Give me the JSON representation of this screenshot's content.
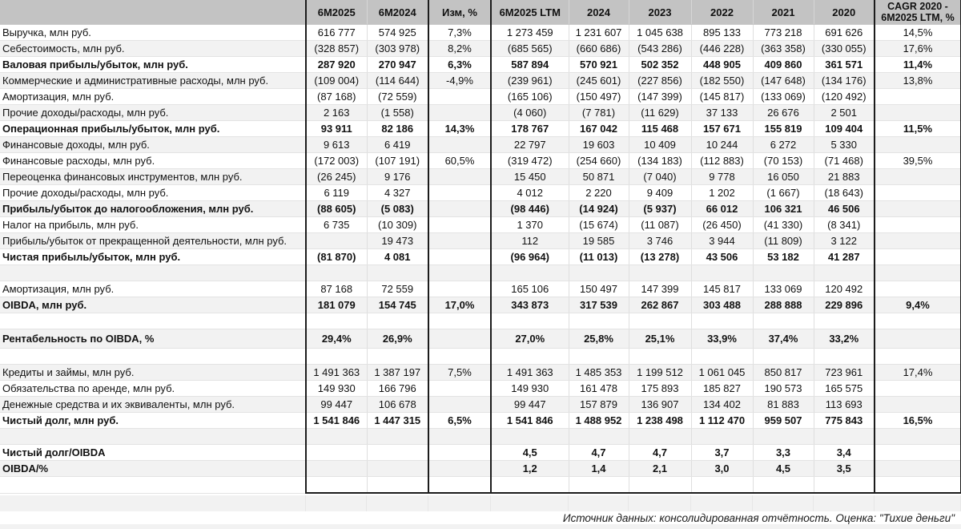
{
  "header": {
    "row_label_header": "",
    "columns": [
      "6M2025",
      "6M2024",
      "Изм, %",
      "6M2025 LTM",
      "2024",
      "2023",
      "2022",
      "2021",
      "2020",
      "CAGR 2020 - 6M2025 LTM, %"
    ]
  },
  "rows": [
    {
      "label": "Выручка, млн руб.",
      "bold": false,
      "values": [
        "616 777",
        "574 925",
        "7,3%",
        "1 273 459",
        "1 231 607",
        "1 045 638",
        "895 133",
        "773 218",
        "691 626",
        "14,5%"
      ]
    },
    {
      "label": "Себестоимость, млн руб.",
      "bold": false,
      "values": [
        "(328 857)",
        "(303 978)",
        "8,2%",
        "(685 565)",
        "(660 686)",
        "(543 286)",
        "(446 228)",
        "(363 358)",
        "(330 055)",
        "17,6%"
      ]
    },
    {
      "label": "Валовая прибыль/убыток, млн руб.",
      "bold": true,
      "values": [
        "287 920",
        "270 947",
        "6,3%",
        "587 894",
        "570 921",
        "502 352",
        "448 905",
        "409 860",
        "361 571",
        "11,4%"
      ]
    },
    {
      "label": "Коммерческие и административные расходы, млн руб.",
      "bold": false,
      "values": [
        "(109 004)",
        "(114 644)",
        "-4,9%",
        "(239 961)",
        "(245 601)",
        "(227 856)",
        "(182 550)",
        "(147 648)",
        "(134 176)",
        "13,8%"
      ]
    },
    {
      "label": "Амортизация, млн руб.",
      "bold": false,
      "values": [
        "(87 168)",
        "(72 559)",
        "",
        "(165 106)",
        "(150 497)",
        "(147 399)",
        "(145 817)",
        "(133 069)",
        "(120 492)",
        ""
      ]
    },
    {
      "label": "Прочие доходы/расходы, млн руб.",
      "bold": false,
      "values": [
        "2 163",
        "(1 558)",
        "",
        "(4 060)",
        "(7 781)",
        "(11 629)",
        "37 133",
        "26 676",
        "2 501",
        ""
      ]
    },
    {
      "label": "Операционная прибыль/убыток, млн руб.",
      "bold": true,
      "values": [
        "93 911",
        "82 186",
        "14,3%",
        "178 767",
        "167 042",
        "115 468",
        "157 671",
        "155 819",
        "109 404",
        "11,5%"
      ]
    },
    {
      "label": "Финансовые доходы, млн руб.",
      "bold": false,
      "values": [
        "9 613",
        "6 419",
        "",
        "22 797",
        "19 603",
        "10 409",
        "10 244",
        "6 272",
        "5 330",
        ""
      ]
    },
    {
      "label": "Финансовые расходы, млн руб.",
      "bold": false,
      "values": [
        "(172 003)",
        "(107 191)",
        "60,5%",
        "(319 472)",
        "(254 660)",
        "(134 183)",
        "(112 883)",
        "(70 153)",
        "(71 468)",
        "39,5%"
      ]
    },
    {
      "label": "Переоценка финансовых инструментов, млн руб.",
      "bold": false,
      "values": [
        "(26 245)",
        "9 176",
        "",
        "15 450",
        "50 871",
        "(7 040)",
        "9 778",
        "16 050",
        "21 883",
        ""
      ]
    },
    {
      "label": "Прочие доходы/расходы, млн руб.",
      "bold": false,
      "values": [
        "6 119",
        "4 327",
        "",
        "4 012",
        "2 220",
        "9 409",
        "1 202",
        "(1 667)",
        "(18 643)",
        ""
      ]
    },
    {
      "label": "Прибыль/убыток до налогообложения, млн руб.",
      "bold": true,
      "values": [
        "(88 605)",
        "(5 083)",
        "",
        "(98 446)",
        "(14 924)",
        "(5 937)",
        "66 012",
        "106 321",
        "46 506",
        ""
      ]
    },
    {
      "label": "Налог на прибыль, млн руб.",
      "bold": false,
      "values": [
        "6 735",
        "(10 309)",
        "",
        "1 370",
        "(15 674)",
        "(11 087)",
        "(26 450)",
        "(41 330)",
        "(8 341)",
        ""
      ]
    },
    {
      "label": "Прибыль/убыток от прекращенной деятельности, млн руб.",
      "bold": false,
      "values": [
        "",
        "19 473",
        "",
        "112",
        "19 585",
        "3 746",
        "3 944",
        "(11 809)",
        "3 122",
        ""
      ]
    },
    {
      "label": "Чистая прибыль/убыток, млн руб.",
      "bold": true,
      "values": [
        "(81 870)",
        "4 081",
        "",
        "(96 964)",
        "(11 013)",
        "(13 278)",
        "43 506",
        "53 182",
        "41 287",
        ""
      ]
    },
    {
      "label": "",
      "bold": false,
      "values": [
        "",
        "",
        "",
        "",
        "",
        "",
        "",
        "",
        "",
        ""
      ]
    },
    {
      "label": "Амортизация, млн руб.",
      "bold": false,
      "values": [
        "87 168",
        "72 559",
        "",
        "165 106",
        "150 497",
        "147 399",
        "145 817",
        "133 069",
        "120 492",
        ""
      ]
    },
    {
      "label": "OIBDA, млн руб.",
      "bold": true,
      "values": [
        "181 079",
        "154 745",
        "17,0%",
        "343 873",
        "317 539",
        "262 867",
        "303 488",
        "288 888",
        "229 896",
        "9,4%"
      ]
    },
    {
      "label": "",
      "bold": false,
      "values": [
        "",
        "",
        "",
        "",
        "",
        "",
        "",
        "",
        "",
        ""
      ]
    },
    {
      "label": "Рентабельность по OIBDA, %",
      "bold": true,
      "values": [
        "29,4%",
        "26,9%",
        "",
        "27,0%",
        "25,8%",
        "25,1%",
        "33,9%",
        "37,4%",
        "33,2%",
        ""
      ]
    },
    {
      "label": "",
      "bold": false,
      "values": [
        "",
        "",
        "",
        "",
        "",
        "",
        "",
        "",
        "",
        ""
      ]
    },
    {
      "label": "Кредиты и займы, млн руб.",
      "bold": false,
      "values": [
        "1 491 363",
        "1 387 197",
        "7,5%",
        "1 491 363",
        "1 485 353",
        "1 199 512",
        "1 061 045",
        "850 817",
        "723 961",
        "17,4%"
      ]
    },
    {
      "label": "Обязательства по аренде, млн руб.",
      "bold": false,
      "values": [
        "149 930",
        "166 796",
        "",
        "149 930",
        "161 478",
        "175 893",
        "185 827",
        "190 573",
        "165 575",
        ""
      ]
    },
    {
      "label": "Денежные средства и их эквиваленты, млн руб.",
      "bold": false,
      "values": [
        "99 447",
        "106 678",
        "",
        "99 447",
        "157 879",
        "136 907",
        "134 402",
        "81 883",
        "113 693",
        ""
      ]
    },
    {
      "label": "Чистый долг, млн руб.",
      "bold": true,
      "values": [
        "1 541 846",
        "1 447 315",
        "6,5%",
        "1 541 846",
        "1 488 952",
        "1 238 498",
        "1 112 470",
        "959 507",
        "775 843",
        "16,5%"
      ]
    },
    {
      "label": "",
      "bold": false,
      "values": [
        "",
        "",
        "",
        "",
        "",
        "",
        "",
        "",
        "",
        ""
      ]
    },
    {
      "label": "Чистый долг/OIBDA",
      "bold": true,
      "values": [
        "",
        "",
        "",
        "4,5",
        "4,7",
        "4,7",
        "3,7",
        "3,3",
        "3,4",
        ""
      ]
    },
    {
      "label": "OIBDA/%",
      "bold": true,
      "values": [
        "",
        "",
        "",
        "1,2",
        "1,4",
        "2,1",
        "3,0",
        "4,5",
        "3,5",
        ""
      ]
    },
    {
      "label": "",
      "bold": false,
      "values": [
        "",
        "",
        "",
        "",
        "",
        "",
        "",
        "",
        "",
        ""
      ]
    }
  ],
  "footer": {
    "note": "Источник данных: консолидированная отчётность. Оценка: \"Тихие деньги\""
  },
  "colors": {
    "header_bg": "#c3c3c3",
    "row_alt_bg": "#f2f2f2",
    "group_border": "#1c1c1c"
  }
}
